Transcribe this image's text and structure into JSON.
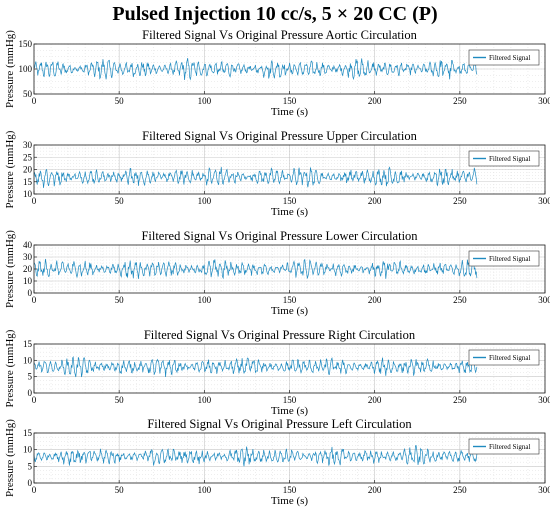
{
  "figure": {
    "title": "Pulsed Injection 10 cc/s, 5 × 20 CC (P)"
  },
  "chart_data": [
    {
      "type": "line",
      "title": "Filtered Signal Vs Original Pressure Aortic Circulation",
      "xlabel": "Time (s)",
      "ylabel": "Pressure (mmHg)",
      "xlim": [
        0,
        300
      ],
      "ylim": [
        50,
        150
      ],
      "xticks": [
        0,
        50,
        100,
        150,
        200,
        250,
        300
      ],
      "yticks": [
        50,
        100,
        150
      ],
      "grid": true,
      "legend": "top-right",
      "series": [
        {
          "name": "Filtered Signal",
          "color": "#1f8ac0",
          "t_end": 260,
          "mean": 100,
          "amplitude": 25
        }
      ]
    },
    {
      "type": "line",
      "title": "Filtered Signal Vs Original Pressure Upper Circulation",
      "xlabel": "Time (s)",
      "ylabel": "Pressure (mmHg)",
      "xlim": [
        0,
        300
      ],
      "ylim": [
        10,
        30
      ],
      "xticks": [
        0,
        50,
        100,
        150,
        200,
        250,
        300
      ],
      "yticks": [
        10,
        15,
        20,
        25,
        30
      ],
      "grid": true,
      "legend": "top-right",
      "series": [
        {
          "name": "Filtered Signal",
          "color": "#1f8ac0",
          "t_end": 260,
          "mean": 17,
          "amplitude": 5
        }
      ]
    },
    {
      "type": "line",
      "title": "Filtered Signal Vs Original Pressure Lower Circulation",
      "xlabel": "Time (s)",
      "ylabel": "Pressure (mmHg)",
      "xlim": [
        0,
        300
      ],
      "ylim": [
        0,
        40
      ],
      "xticks": [
        0,
        50,
        100,
        150,
        200,
        250,
        300
      ],
      "yticks": [
        0,
        10,
        20,
        30,
        40
      ],
      "grid": true,
      "legend": "top-right",
      "series": [
        {
          "name": "Filtered Signal",
          "color": "#1f8ac0",
          "t_end": 260,
          "mean": 20,
          "amplitude": 10
        }
      ]
    },
    {
      "type": "line",
      "title": "Filtered Signal Vs Original Pressure Right Circulation",
      "xlabel": "Time (s)",
      "ylabel": "Pressure (mmHg)",
      "xlim": [
        0,
        300
      ],
      "ylim": [
        0,
        15
      ],
      "xticks": [
        0,
        50,
        100,
        150,
        200,
        250,
        300
      ],
      "yticks": [
        0,
        5,
        10,
        15
      ],
      "grid": true,
      "legend": "top-right",
      "series": [
        {
          "name": "Filtered Signal",
          "color": "#1f8ac0",
          "t_end": 260,
          "mean": 8,
          "amplitude": 3.5
        }
      ]
    },
    {
      "type": "line",
      "title": "Filtered Signal Vs Original Pressure Left Circulation",
      "xlabel": "Time (s)",
      "ylabel": "Pressure (mmHg)",
      "xlim": [
        0,
        300
      ],
      "ylim": [
        0,
        15
      ],
      "xticks": [
        0,
        50,
        100,
        150,
        200,
        250,
        300
      ],
      "yticks": [
        0,
        5,
        10,
        15
      ],
      "grid": true,
      "legend": "top-right",
      "series": [
        {
          "name": "Filtered Signal",
          "color": "#1f8ac0",
          "t_end": 260,
          "mean": 8,
          "amplitude": 3.5
        }
      ]
    }
  ]
}
